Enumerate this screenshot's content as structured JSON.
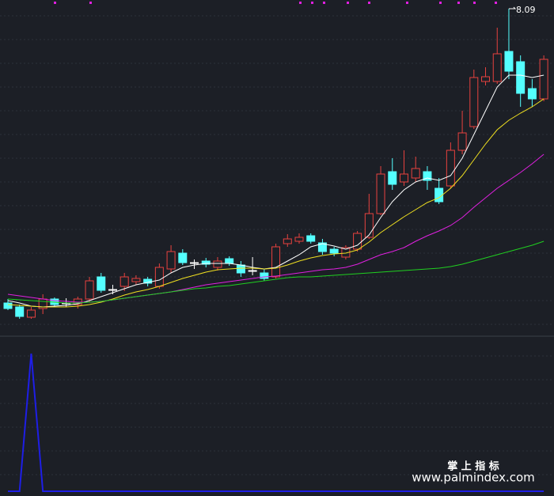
{
  "chart_data": {
    "type": "candlestick",
    "ylim": [
      3.95,
      8.2
    ],
    "up_color": "#e8423f",
    "down_color": "#54ffff",
    "high_label": 8.09,
    "high_index": 43,
    "open": [
      4.37,
      4.32,
      4.19,
      4.3,
      4.42,
      4.37,
      4.35,
      4.42,
      4.7,
      4.53,
      4.58,
      4.64,
      4.67,
      4.58,
      4.8,
      5.0,
      4.87,
      4.9,
      4.82,
      4.93,
      4.85,
      4.78,
      4.75,
      4.7,
      5.12,
      5.15,
      5.22,
      5.13,
      5.05,
      4.95,
      5.05,
      5.2,
      5.5,
      6.03,
      5.9,
      5.95,
      6.03,
      5.82,
      5.85,
      6.3,
      6.6,
      7.17,
      7.17,
      7.55,
      7.42,
      7.08,
      6.95
    ],
    "high": [
      4.42,
      4.35,
      4.32,
      4.48,
      4.44,
      4.43,
      4.45,
      4.7,
      4.75,
      4.6,
      4.75,
      4.72,
      4.7,
      4.87,
      5.1,
      5.05,
      4.92,
      4.94,
      4.95,
      4.96,
      4.9,
      4.95,
      4.8,
      5.12,
      5.24,
      5.25,
      5.25,
      5.18,
      5.08,
      5.1,
      5.28,
      5.75,
      6.1,
      6.2,
      6.3,
      6.22,
      6.1,
      5.95,
      6.4,
      6.8,
      7.32,
      7.35,
      7.85,
      8.09,
      7.5,
      7.2,
      7.5
    ],
    "low": [
      4.28,
      4.17,
      4.17,
      4.23,
      4.33,
      4.32,
      4.3,
      4.38,
      4.5,
      4.48,
      4.52,
      4.6,
      4.58,
      4.55,
      4.75,
      4.85,
      4.8,
      4.82,
      4.78,
      4.84,
      4.7,
      4.72,
      4.65,
      4.68,
      5.08,
      5.12,
      5.12,
      4.98,
      4.96,
      4.92,
      5.02,
      5.18,
      5.48,
      5.8,
      5.85,
      5.9,
      5.8,
      5.62,
      5.82,
      6.25,
      6.57,
      7.12,
      7.14,
      7.2,
      6.85,
      6.85,
      6.92
    ],
    "close": [
      4.3,
      4.2,
      4.28,
      4.42,
      4.35,
      4.36,
      4.42,
      4.65,
      4.53,
      4.54,
      4.7,
      4.68,
      4.62,
      4.82,
      5.02,
      4.88,
      4.88,
      4.86,
      4.9,
      4.87,
      4.75,
      4.77,
      4.68,
      5.08,
      5.18,
      5.2,
      5.15,
      5.02,
      5.0,
      5.07,
      5.25,
      5.5,
      6.0,
      5.87,
      6.0,
      6.07,
      5.92,
      5.65,
      6.3,
      6.52,
      7.22,
      7.23,
      7.52,
      7.3,
      7.02,
      6.95,
      7.45
    ],
    "series": [
      {
        "color": "#ffffff",
        "values": [
          4.4,
          4.37,
          4.33,
          4.32,
          4.33,
          4.34,
          4.36,
          4.4,
          4.45,
          4.5,
          4.55,
          4.6,
          4.63,
          4.66,
          4.75,
          4.82,
          4.85,
          4.87,
          4.87,
          4.87,
          4.85,
          4.82,
          4.8,
          4.82,
          4.9,
          4.98,
          5.08,
          5.12,
          5.09,
          5.05,
          5.1,
          5.23,
          5.45,
          5.65,
          5.8,
          5.9,
          5.95,
          5.92,
          5.98,
          6.2,
          6.5,
          6.8,
          7.1,
          7.25,
          7.25,
          7.22,
          7.25
        ]
      },
      {
        "color": "#f0e020",
        "values": [
          4.35,
          4.34,
          4.33,
          4.32,
          4.32,
          4.32,
          4.33,
          4.35,
          4.38,
          4.42,
          4.47,
          4.51,
          4.54,
          4.58,
          4.63,
          4.68,
          4.72,
          4.76,
          4.79,
          4.8,
          4.81,
          4.81,
          4.8,
          4.81,
          4.85,
          4.9,
          4.94,
          4.97,
          4.99,
          5.0,
          5.04,
          5.14,
          5.26,
          5.36,
          5.46,
          5.55,
          5.64,
          5.7,
          5.82,
          5.98,
          6.18,
          6.38,
          6.56,
          6.68,
          6.77,
          6.85,
          6.95
        ]
      },
      {
        "color": "#e020e0",
        "values": [
          4.48,
          4.46,
          4.44,
          4.42,
          4.4,
          4.39,
          4.38,
          4.38,
          4.39,
          4.41,
          4.43,
          4.45,
          4.47,
          4.49,
          4.51,
          4.54,
          4.57,
          4.6,
          4.62,
          4.64,
          4.66,
          4.68,
          4.7,
          4.71,
          4.73,
          4.75,
          4.77,
          4.79,
          4.8,
          4.82,
          4.86,
          4.92,
          4.98,
          5.02,
          5.07,
          5.15,
          5.22,
          5.28,
          5.35,
          5.45,
          5.58,
          5.7,
          5.82,
          5.92,
          6.02,
          6.13,
          6.25
        ]
      },
      {
        "color": "#20d020",
        "values": [
          4.42,
          4.41,
          4.4,
          4.39,
          4.38,
          4.37,
          4.37,
          4.38,
          4.39,
          4.41,
          4.43,
          4.45,
          4.47,
          4.49,
          4.51,
          4.53,
          4.55,
          4.56,
          4.58,
          4.59,
          4.61,
          4.63,
          4.65,
          4.67,
          4.69,
          4.7,
          4.7,
          4.71,
          4.72,
          4.73,
          4.74,
          4.75,
          4.76,
          4.77,
          4.78,
          4.79,
          4.8,
          4.81,
          4.83,
          4.86,
          4.9,
          4.94,
          4.98,
          5.02,
          5.06,
          5.1,
          5.15
        ]
      }
    ],
    "indicator": {
      "color": "#1e1ee6",
      "ylim": [
        0,
        1
      ],
      "values": [
        0,
        0,
        1,
        0,
        0,
        0,
        0,
        0,
        0,
        0,
        0,
        0,
        0,
        0,
        0,
        0,
        0,
        0,
        0,
        0,
        0,
        0,
        0,
        0,
        0,
        0,
        0,
        0,
        0,
        0,
        0,
        0,
        0,
        0,
        0,
        0,
        0,
        0,
        0,
        0,
        0,
        0,
        0,
        0,
        0,
        0,
        0
      ]
    }
  },
  "watermark": {
    "title": "掌 上 指 标",
    "url": "www.palmindex.com"
  }
}
